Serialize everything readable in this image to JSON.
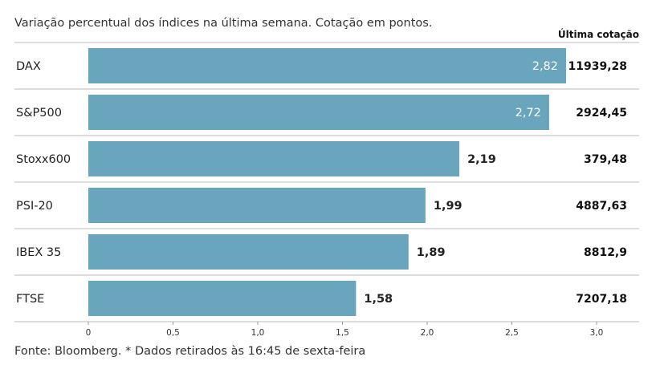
{
  "chart_data": {
    "type": "bar",
    "orientation": "horizontal",
    "title": "Variação percentual dos índices na última semana. Cotação em pontos.",
    "value_column_header": "Última cotação",
    "categories": [
      "DAX",
      "S&P500",
      "Stoxx600",
      "PSI-20",
      "IBEX 35",
      "FTSE"
    ],
    "values": [
      2.82,
      2.72,
      2.19,
      1.99,
      1.89,
      1.58
    ],
    "value_labels": [
      "2,82",
      "2,72",
      "2,19",
      "1,99",
      "1,89",
      "1,58"
    ],
    "quotes": [
      "11939,28",
      "2924,45",
      "379,48",
      "4887,63",
      "8812,9",
      "7207,18"
    ],
    "xlim": [
      0,
      3.2
    ],
    "ticks": [
      0,
      0.5,
      1,
      1.5,
      2,
      2.5,
      3
    ],
    "tick_labels": [
      "0",
      "0,5",
      "1,0",
      "1,5",
      "2,0",
      "2,5",
      "3,0"
    ],
    "bar_color": "#6aa5be",
    "footer": "Fonte: Bloomberg.  * Dados retirados às 16:45 de sexta-feira"
  }
}
